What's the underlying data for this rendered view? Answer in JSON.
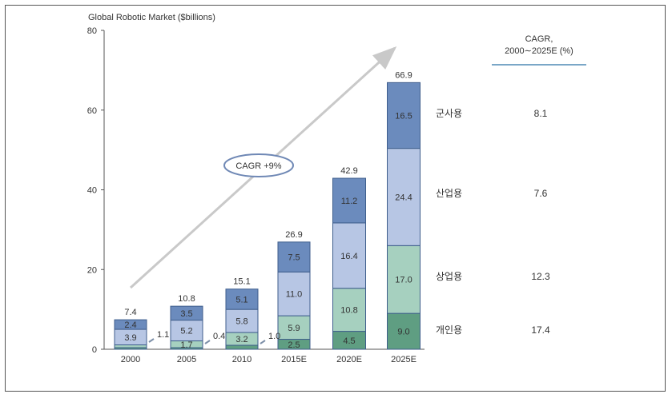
{
  "chart_data": {
    "type": "bar",
    "stacked": true,
    "ylabel": "Global Robotic Market ($billions)",
    "ylim": [
      0,
      80
    ],
    "yticks": [
      "0",
      "20",
      "40",
      "60",
      "80"
    ],
    "categories": [
      "2000",
      "2005",
      "2010",
      "2015E",
      "2020E",
      "2025E"
    ],
    "series": [
      {
        "name": "개인용",
        "color": "#5f9e82",
        "values": [
          0.4,
          0.4,
          1.0,
          2.5,
          4.5,
          9.0
        ],
        "labels": [
          "",
          "",
          "",
          "2.5",
          "4.5",
          "9.0"
        ]
      },
      {
        "name": "상업용",
        "color": "#a6d0bf",
        "values": [
          0.7,
          1.7,
          3.2,
          5.9,
          10.8,
          17.0
        ],
        "labels": [
          "",
          "1.7",
          "3.2",
          "5.9",
          "10.8",
          "17.0"
        ]
      },
      {
        "name": "산업용",
        "color": "#b7c6e4",
        "values": [
          3.9,
          5.2,
          5.8,
          11.0,
          16.4,
          24.4
        ],
        "labels": [
          "3.9",
          "5.2",
          "5.8",
          "11.0",
          "16.4",
          "24.4"
        ]
      },
      {
        "name": "군사용",
        "color": "#6b8bbd",
        "values": [
          2.4,
          3.5,
          5.1,
          7.5,
          11.2,
          16.5
        ],
        "labels": [
          "2.4",
          "3.5",
          "5.1",
          "7.5",
          "11.2",
          "16.5"
        ]
      }
    ],
    "totals": [
      "7.4",
      "10.8",
      "15.1",
      "26.9",
      "42.9",
      "66.9"
    ],
    "side_labels": [
      "1.1",
      "0.4",
      "1.0"
    ],
    "trend_annotation": "CAGR +9%",
    "cagr_header": [
      "CAGR,",
      "2000∼2025E (%)"
    ],
    "cagr_values": {
      "군사용": "8.1",
      "산업용": "7.6",
      "상업용": "12.3",
      "개인용": "17.4"
    },
    "grid": false,
    "legend": "right"
  }
}
